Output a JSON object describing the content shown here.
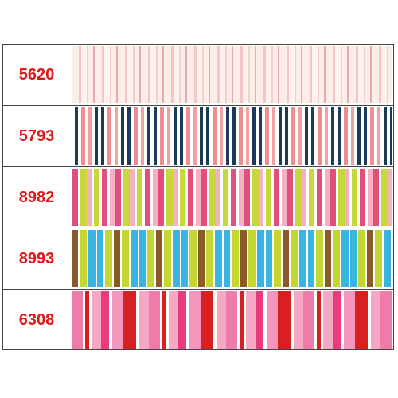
{
  "swatches": [
    {
      "code": "5620"
    },
    {
      "code": "5793"
    },
    {
      "code": "8982"
    },
    {
      "code": "8993"
    },
    {
      "code": "6308"
    }
  ]
}
